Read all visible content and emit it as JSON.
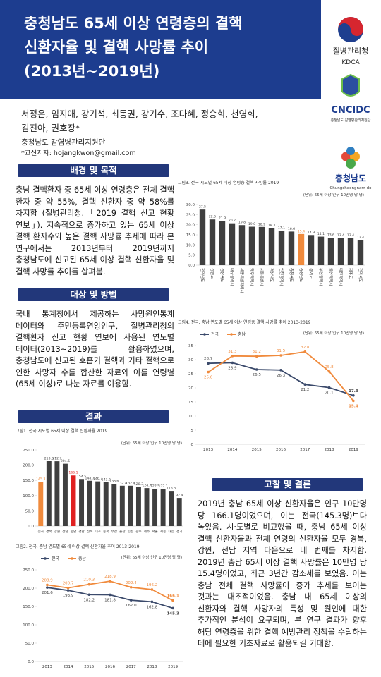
{
  "header": {
    "title": [
      "충청남도 65세 이상 연령층의 결핵",
      "신환자율 및 결핵 사망률 추이",
      "(2013년~2019년)"
    ]
  },
  "logos": {
    "kdca_ko": "질병관리청",
    "kdca_en": "KDCA",
    "cncidc": "CNCIDC",
    "cncidc_sub": "충청남도 감염병관리지원단",
    "province_ko": "충청남도",
    "province_en": "Chungcheongnam-do"
  },
  "authors": {
    "names": [
      "서정은, 임지애, 강기석, 최동권, 강기수, 조다혜, 정승희, 천영희,",
      "김진아, 권호장*"
    ],
    "affiliation": "충청남도 감염병관리지원단",
    "corresponding": "*교신저자: hojangkwon@gmail.com"
  },
  "sections": [
    {
      "heading": "배경 및 목적",
      "text": "충남 결핵환자 중 65세 이상 연령층은 전체 결핵 환자 중 약 55%, 결핵 신환자 중 약 58%를 차지함 (질병관리청.「2019 결핵 신고 현황 연보」). 지속적으로 증가하고 있는 65세 이상 결핵 환자수와 높은 결핵 사망률 추세에 따라 본 연구에서는 2013년부터 2019년까지 충청남도에 신고된 65세 이상 결핵 신환자율 및 결핵 사망률 추이를 살펴봄."
    },
    {
      "heading": "대상 및 방법",
      "text": "국내 통계청에서 제공하는 사망원인통계 데이터와 주민등록연앙인구, 질병관리청의 결핵환자 신고 현황 연보에 사용된 연도별 데이터(2013~2019)를 활용하였으며, 충청남도에 신고된 호흡기 결핵과 기타 결핵으로 인한 사망자 수를 합산한 자료와 이를 연령별 (65세 이상)로 나눈 자료를 이용함."
    },
    {
      "heading": "결과"
    },
    {
      "heading": "고찰 및 결론",
      "text": "2019년 충남 65세 이상 신환자율은 인구 10만명 당 166.1명이었으며, 이는 전국(145.3명)보다 높았음. 시·도별로 비교했을 때, 충남 65세 이상 결핵 신환자율과 전체 연령의 신환자율 모두 경북, 강원, 전남 지역 다음으로 네 번째를 차지함. 2019년 충남 65세 이상 결핵 사망률은 10만명 당 15.4명이었고, 최근 3년간 감소세를 보였음. 이는 충남 전체 결핵 사망률이 증가 추세를 보이는 것과는 대조적이었음. 충남 내 65세 이상의 신환자와 결핵 사망자의 특성 및 원인에 대한 추가적인 분석이 요구되며, 본 연구 결과가 향후 해당 연령층을 위한 결핵 예방관리 정책을 수립하는 데에 필요한 기초자료로 활용되길 기대함."
    }
  ],
  "chart_data": [
    {
      "type": "bar",
      "title": "그림1. 전국 시도별 65세 이상 결핵 신환자율 2019",
      "unit": "(단위: 65세 이상 인구 10만명 당 명)",
      "categories": [
        "전국",
        "경북",
        "강원",
        "전남",
        "충남",
        "경남",
        "전북",
        "대구",
        "충북",
        "부산",
        "울산",
        "인천",
        "광주",
        "제주",
        "서울",
        "세종",
        "대전",
        "경기"
      ],
      "values": [
        145.3,
        213.5,
        212.7,
        204.5,
        166.1,
        154.5,
        148.7,
        146.7,
        143.9,
        138.6,
        132.4,
        132.4,
        128.3,
        124.7,
        122.5,
        122.1,
        115.5,
        92.4
      ],
      "colors": [
        "#f08a3c",
        "#3f3f3f",
        "#3f3f3f",
        "#3f3f3f",
        "#e02020",
        "#3f3f3f",
        "#3f3f3f",
        "#3f3f3f",
        "#3f3f3f",
        "#3f3f3f",
        "#3f3f3f",
        "#3f3f3f",
        "#3f3f3f",
        "#3f3f3f",
        "#3f3f3f",
        "#3f3f3f",
        "#3f3f3f",
        "#3f3f3f"
      ],
      "ylim": [
        0,
        250
      ],
      "yticks": [
        {
          "value": 0,
          "label": "0.0"
        },
        {
          "value": 50,
          "label": "50.0"
        },
        {
          "value": 100,
          "label": "100.0"
        },
        {
          "value": 150,
          "label": "150.0"
        },
        {
          "value": 200,
          "label": "200.0"
        },
        {
          "value": 250,
          "label": "250.0"
        }
      ]
    },
    {
      "type": "line",
      "title": "그림2. 전국, 충남 연도별 65세 이상 결핵 신환자율 추이 2013-2019",
      "unit": "(단위: 65세 이상 인구 10만명 당 명)",
      "categories": [
        "2013",
        "2014",
        "2015",
        "2016",
        "2017",
        "2018",
        "2019"
      ],
      "series": [
        {
          "name": "전국",
          "color": "#3b4a6b",
          "values": [
            201.6,
            193.9,
            182.2,
            181.8,
            167.0,
            162.8,
            145.3
          ],
          "value_labels": [
            "201.6",
            "193.9",
            "182.2",
            "181.8",
            "167.0",
            "162.8",
            "145.3"
          ]
        },
        {
          "name": "충남",
          "color": "#f08a3c",
          "values": [
            208.9,
            200.7,
            210.3,
            218.9,
            202.4,
            196.2,
            166.1
          ],
          "value_labels": [
            "208.9",
            "200.7",
            "210.3",
            "218.9",
            "202.4",
            "196.2",
            "166.1"
          ]
        }
      ],
      "ylim": [
        0,
        250
      ],
      "yticks": [
        {
          "value": 0,
          "label": "0.0"
        },
        {
          "value": 50,
          "label": "50.0"
        },
        {
          "value": 100,
          "label": "100.0"
        },
        {
          "value": 150,
          "label": "150.0"
        },
        {
          "value": 200,
          "label": "200.0"
        },
        {
          "value": 250,
          "label": "250.0"
        }
      ]
    },
    {
      "type": "bar",
      "title": "그림3. 전국 시도별 65세 이상 연령층 결핵 사망률 2019",
      "unit": "(단위: 65세 이상 인구 10만명 당 명)",
      "categories": [
        "전라남도",
        "강원도",
        "경상북도",
        "대구광역시",
        "세종특별자치시",
        "광주광역시",
        "서울특별시",
        "경상남도",
        "인천광역시",
        "충청북도",
        "충청남도",
        "경기도",
        "부산광역시",
        "울산광역시",
        "대전광역시",
        "제주도",
        "전라북도"
      ],
      "values": [
        27.5,
        22.6,
        21.9,
        20.7,
        19.8,
        19.0,
        18.9,
        18.3,
        17.1,
        16.6,
        15.4,
        14.9,
        14.1,
        13.6,
        13.4,
        13.4,
        12.4
      ],
      "value_labels": [
        "27.5",
        "22.6",
        "21.9",
        "20.7",
        "19.8",
        "19.0",
        "18.9",
        "18.3",
        "17.1",
        "16.6",
        "15.4",
        "14.9",
        "14.1",
        "13.6",
        "13.4",
        "13.4",
        "12.4"
      ],
      "colors": [
        "#3f3f3f",
        "#3f3f3f",
        "#3f3f3f",
        "#3f3f3f",
        "#3f3f3f",
        "#3f3f3f",
        "#3f3f3f",
        "#3f3f3f",
        "#3f3f3f",
        "#3f3f3f",
        "#f08a3c",
        "#3f3f3f",
        "#3f3f3f",
        "#3f3f3f",
        "#3f3f3f",
        "#3f3f3f",
        "#3f3f3f"
      ],
      "ylim": [
        0,
        30
      ],
      "yticks": [
        {
          "value": 0,
          "label": "0.0"
        },
        {
          "value": 5,
          "label": "5.0"
        },
        {
          "value": 10,
          "label": "10.0"
        },
        {
          "value": 15,
          "label": "15.0"
        },
        {
          "value": 20,
          "label": "20.0"
        },
        {
          "value": 25,
          "label": "25.0"
        },
        {
          "value": 30,
          "label": "30.0"
        }
      ]
    },
    {
      "type": "line",
      "title": "그림4. 전국, 충남 연도별 65세 이상 연령층 결핵 사망률 추이 2013-2019",
      "unit": "(단위: 65세 이상 인구 10만명 당 명)",
      "categories": [
        "2013",
        "2014",
        "2015",
        "2016",
        "2017",
        "2018",
        "2019"
      ],
      "series": [
        {
          "name": "전국",
          "color": "#3b4a6b",
          "values": [
            28.7,
            28.9,
            26.5,
            26.3,
            21.2,
            20.1,
            17.3
          ]
        },
        {
          "name": "충남",
          "color": "#f08a3c",
          "values": [
            25.6,
            31.3,
            31.2,
            31.5,
            32.8,
            25.8,
            15.4
          ]
        }
      ],
      "ylim": [
        0,
        35
      ],
      "yticks": [
        0,
        5,
        10,
        15,
        20,
        25,
        30,
        35
      ]
    }
  ]
}
